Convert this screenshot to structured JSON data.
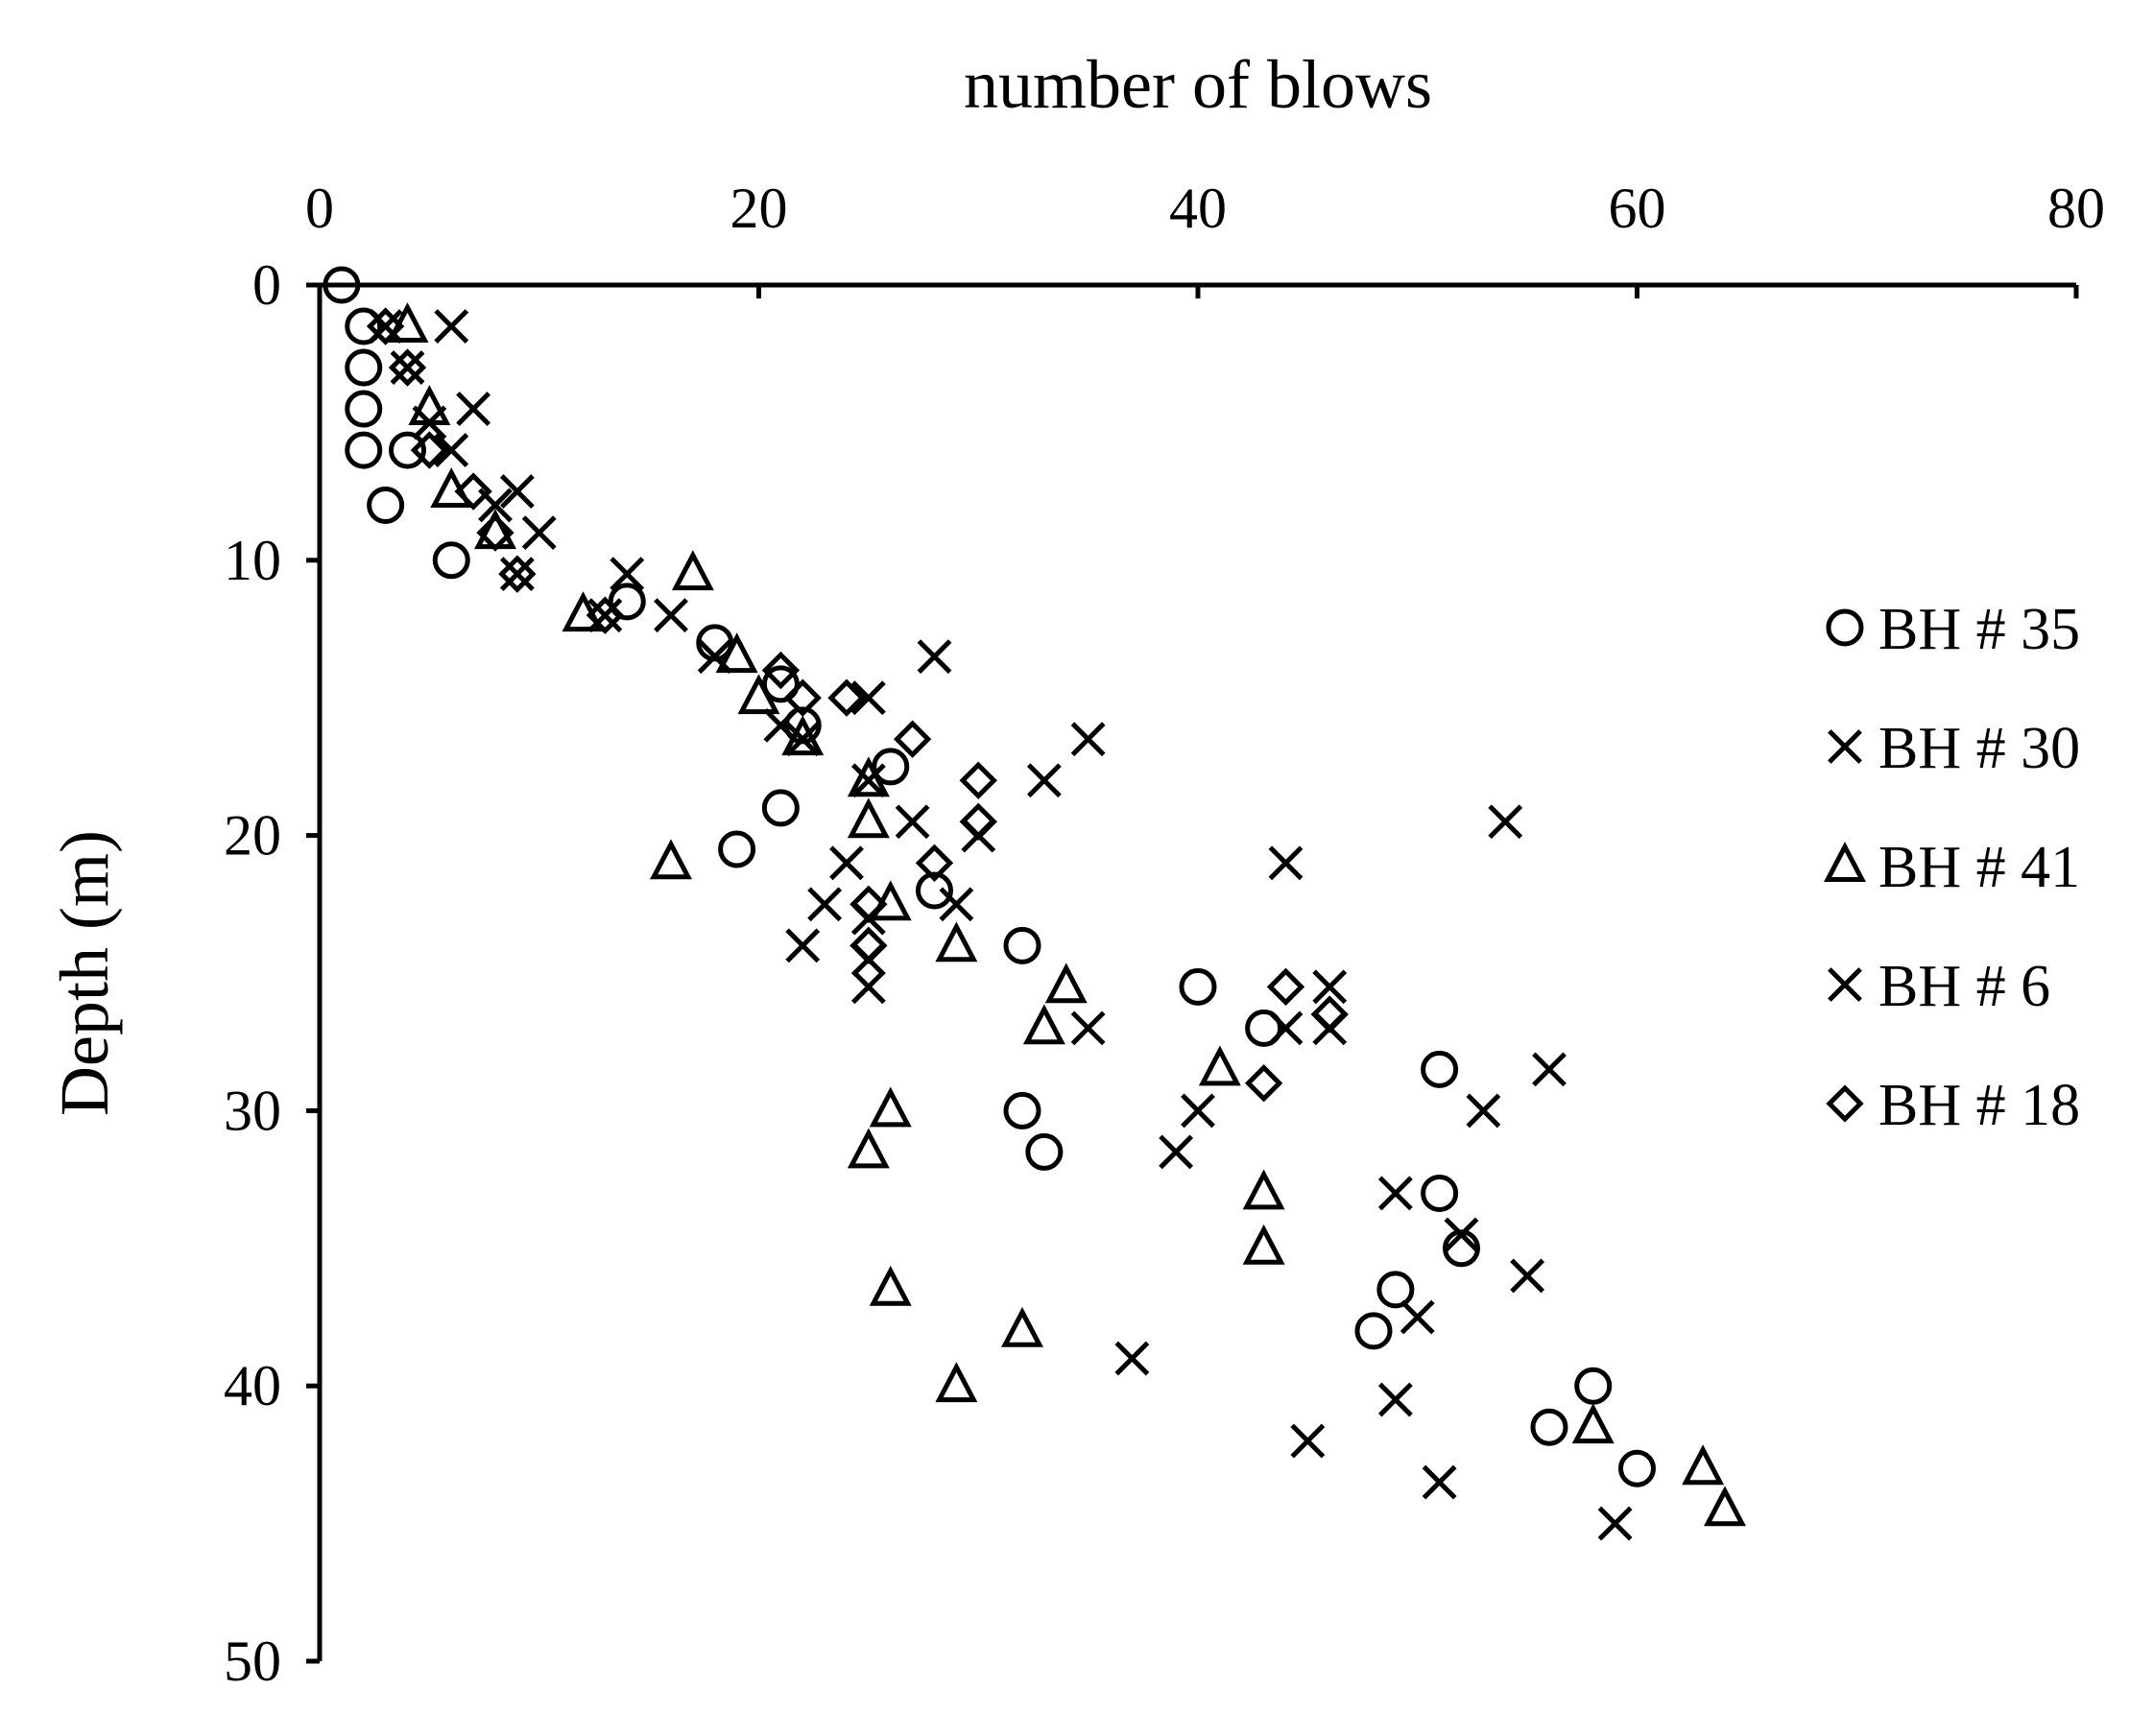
{
  "chart_data": {
    "type": "scatter",
    "xlabel": "number of blows",
    "ylabel": "Depth (m)",
    "xlim": [
      0,
      80
    ],
    "ylim": [
      0,
      50
    ],
    "x_axis_position": "top",
    "y_inverted": true,
    "grid": false,
    "legend_position": "right",
    "xticks": [
      0,
      20,
      40,
      60,
      80
    ],
    "yticks": [
      0,
      10,
      20,
      30,
      40,
      50
    ],
    "xtick_labels": [
      "0",
      "20",
      "40",
      "60",
      "80"
    ],
    "ytick_labels": [
      "0",
      "10",
      "20",
      "30",
      "40",
      "50"
    ],
    "series": [
      {
        "name": "BH # 35",
        "marker": "circle",
        "points": [
          [
            1,
            0
          ],
          [
            2,
            1.5
          ],
          [
            2,
            3
          ],
          [
            2,
            4.5
          ],
          [
            2,
            6
          ],
          [
            4,
            6
          ],
          [
            3,
            8
          ],
          [
            6,
            10
          ],
          [
            14,
            11.5
          ],
          [
            18,
            13
          ],
          [
            21,
            14.5
          ],
          [
            22,
            16
          ],
          [
            26,
            17.5
          ],
          [
            21,
            19
          ],
          [
            19,
            20.5
          ],
          [
            28,
            22
          ],
          [
            32,
            24
          ],
          [
            40,
            25.5
          ],
          [
            43,
            27
          ],
          [
            51,
            28.5
          ],
          [
            32,
            30
          ],
          [
            33,
            31.5
          ],
          [
            51,
            33
          ],
          [
            52,
            35
          ],
          [
            49,
            36.5
          ],
          [
            48,
            38
          ],
          [
            58,
            40
          ],
          [
            56,
            41.5
          ],
          [
            60,
            43
          ]
        ]
      },
      {
        "name": "BH # 30",
        "marker": "x",
        "points": [
          [
            6,
            1.5
          ],
          [
            4,
            3
          ],
          [
            7,
            4.5
          ],
          [
            6,
            6
          ],
          [
            9,
            7.5
          ],
          [
            10,
            9
          ],
          [
            9,
            10.5
          ],
          [
            14,
            10.5
          ],
          [
            16,
            12
          ],
          [
            18,
            13.5
          ],
          [
            25,
            15
          ],
          [
            22,
            16.5
          ],
          [
            25,
            18
          ],
          [
            28,
            13.5
          ],
          [
            35,
            16.5
          ],
          [
            33,
            18
          ],
          [
            27,
            19.5
          ],
          [
            24,
            21
          ],
          [
            23,
            22.5
          ],
          [
            22,
            24
          ],
          [
            25,
            24.5
          ],
          [
            25,
            25.5
          ],
          [
            29,
            22.5
          ],
          [
            35,
            27
          ],
          [
            44,
            21
          ],
          [
            54,
            19.5
          ],
          [
            46,
            25.5
          ],
          [
            46,
            27
          ],
          [
            40,
            30
          ],
          [
            39,
            31.5
          ],
          [
            53,
            30
          ],
          [
            56,
            28.5
          ],
          [
            49,
            33
          ],
          [
            52,
            34.5
          ],
          [
            55,
            36
          ],
          [
            50,
            37.5
          ],
          [
            37,
            39
          ],
          [
            49,
            40.5
          ],
          [
            45,
            42
          ],
          [
            51,
            43.5
          ],
          [
            59,
            45
          ]
        ]
      },
      {
        "name": "BH # 41",
        "marker": "triangle",
        "points": [
          [
            4,
            1.5
          ],
          [
            5,
            4.5
          ],
          [
            6,
            7.5
          ],
          [
            8,
            9
          ],
          [
            12,
            12
          ],
          [
            17,
            10.5
          ],
          [
            19,
            13.5
          ],
          [
            20,
            15
          ],
          [
            22,
            16.5
          ],
          [
            25,
            18
          ],
          [
            25,
            19.5
          ],
          [
            16,
            21
          ],
          [
            26,
            22.5
          ],
          [
            29,
            24
          ],
          [
            34,
            25.5
          ],
          [
            33,
            27
          ],
          [
            41,
            28.5
          ],
          [
            26,
            30
          ],
          [
            25,
            31.5
          ],
          [
            43,
            33
          ],
          [
            43,
            35
          ],
          [
            26,
            36.5
          ],
          [
            32,
            38
          ],
          [
            29,
            40
          ],
          [
            58,
            41.5
          ],
          [
            63,
            43
          ],
          [
            64,
            44.5
          ]
        ]
      },
      {
        "name": "BH # 6",
        "marker": "x",
        "points": [
          [
            3,
            1.5
          ],
          [
            5,
            5
          ],
          [
            8,
            8
          ],
          [
            13,
            12
          ],
          [
            21,
            16
          ],
          [
            25,
            23
          ],
          [
            30,
            20
          ],
          [
            44,
            27
          ]
        ]
      },
      {
        "name": "BH # 18",
        "marker": "diamond",
        "points": [
          [
            3,
            1.5
          ],
          [
            4,
            3
          ],
          [
            5,
            6
          ],
          [
            7,
            7.5
          ],
          [
            8,
            9
          ],
          [
            9,
            10.5
          ],
          [
            13,
            12
          ],
          [
            21,
            14
          ],
          [
            22,
            15
          ],
          [
            24,
            15
          ],
          [
            27,
            16.5
          ],
          [
            30,
            18
          ],
          [
            30,
            19.5
          ],
          [
            28,
            21
          ],
          [
            25,
            22.5
          ],
          [
            25,
            24
          ],
          [
            44,
            25.5
          ],
          [
            46,
            26.5
          ],
          [
            43,
            29
          ]
        ]
      }
    ]
  }
}
